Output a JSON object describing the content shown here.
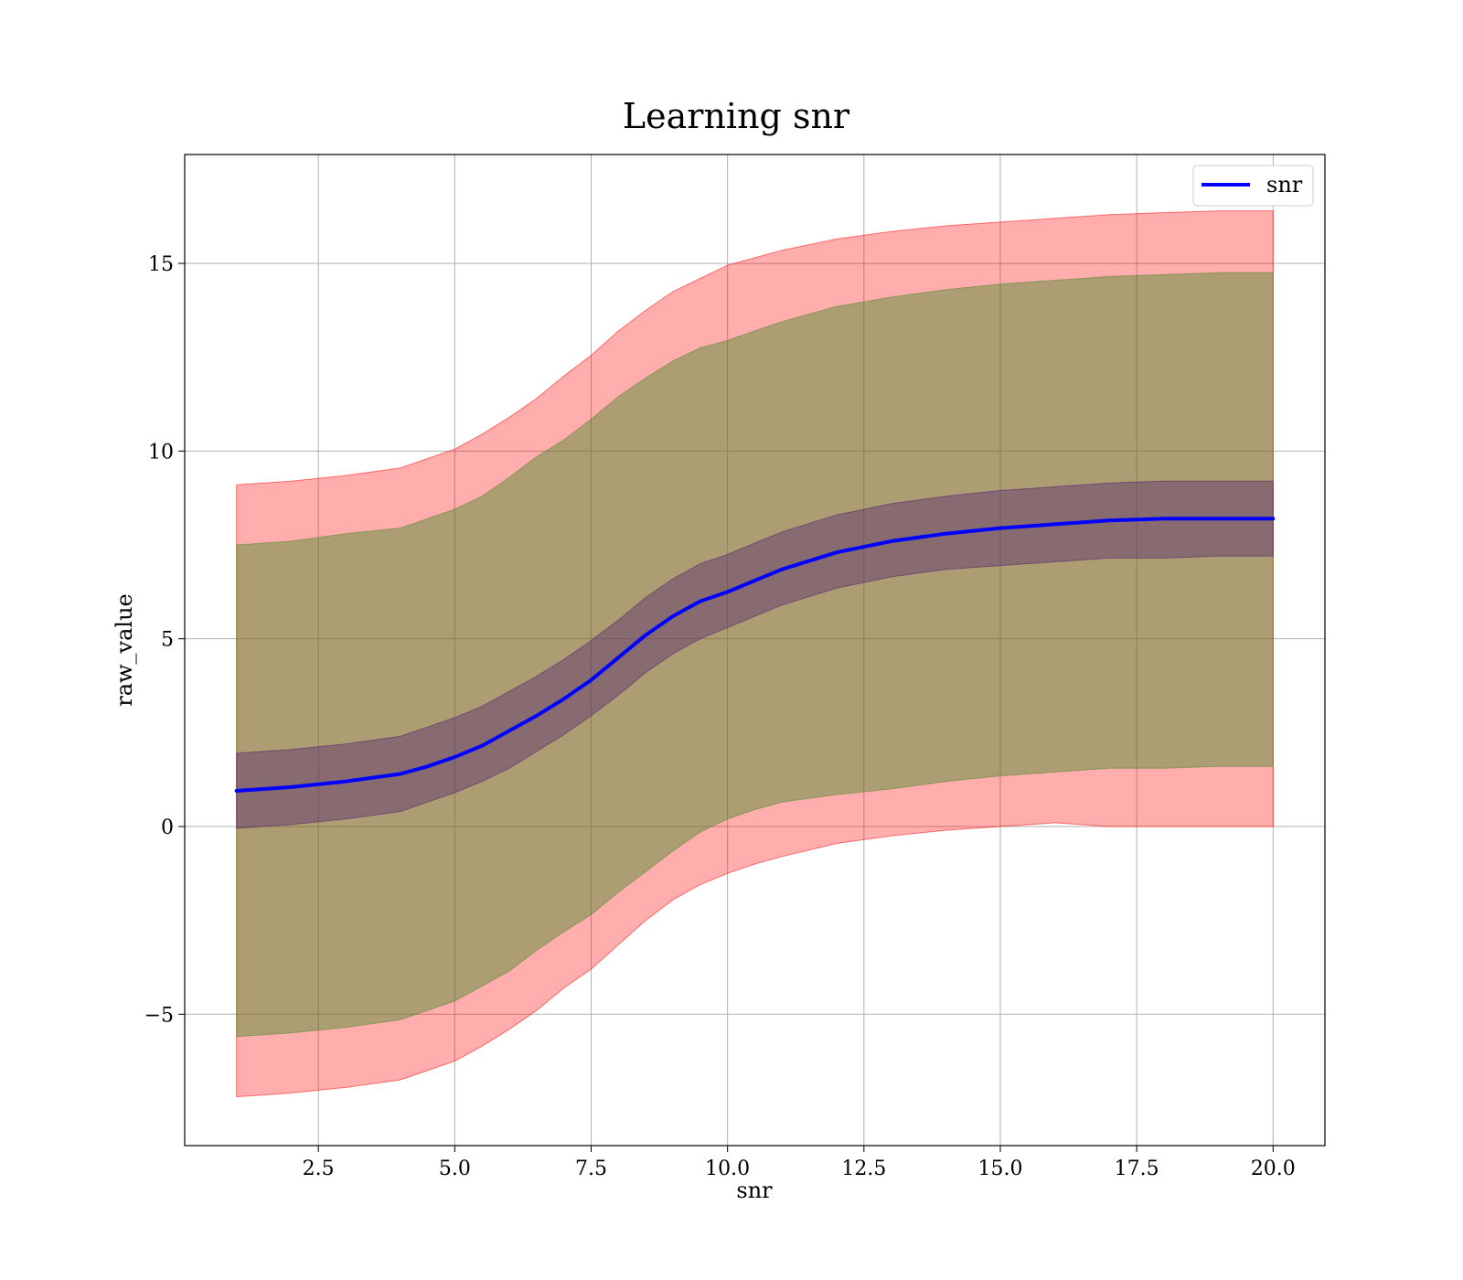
{
  "chart_data": {
    "type": "area",
    "title": "Learning snr",
    "xlabel": "snr",
    "ylabel": "raw_value",
    "xlim": [
      0.05,
      20.95
    ],
    "ylim": [
      -8.5,
      17.9
    ],
    "grid": true,
    "legend_position": "top-right",
    "x_ticks": [
      2.5,
      5.0,
      7.5,
      10.0,
      12.5,
      15.0,
      17.5,
      20.0
    ],
    "x_tick_labels": [
      "2.5",
      "5.0",
      "7.5",
      "10.0",
      "12.5",
      "15.0",
      "17.5",
      "20.0"
    ],
    "y_ticks": [
      -5,
      0,
      5,
      10,
      15
    ],
    "y_tick_labels": [
      "−5",
      "0",
      "5",
      "10",
      "15"
    ],
    "x": [
      1.0,
      2.0,
      3.0,
      4.0,
      4.5,
      5.0,
      5.5,
      6.0,
      6.5,
      7.0,
      7.5,
      8.0,
      8.5,
      9.0,
      9.5,
      10.0,
      10.5,
      11.0,
      12.0,
      13.0,
      14.0,
      15.0,
      16.0,
      17.0,
      18.0,
      19.0,
      20.0
    ],
    "series": [
      {
        "name": "snr",
        "color": "#0000ff",
        "values": [
          0.95,
          1.05,
          1.2,
          1.4,
          1.6,
          1.85,
          2.15,
          2.55,
          2.95,
          3.4,
          3.9,
          4.5,
          5.1,
          5.6,
          6.0,
          6.25,
          6.55,
          6.85,
          7.3,
          7.6,
          7.8,
          7.95,
          8.05,
          8.15,
          8.2,
          8.2,
          8.2
        ]
      }
    ],
    "bands": [
      {
        "color": "#ff0000",
        "opacity": 0.32,
        "lower": [
          -7.2,
          -7.1,
          -6.95,
          -6.75,
          -6.5,
          -6.25,
          -5.85,
          -5.4,
          -4.9,
          -4.3,
          -3.8,
          -3.15,
          -2.5,
          -1.95,
          -1.55,
          -1.25,
          -1.0,
          -0.8,
          -0.45,
          -0.25,
          -0.1,
          0.0,
          0.1,
          0.0,
          0.0,
          0.0,
          0.0
        ],
        "upper": [
          9.1,
          9.2,
          9.35,
          9.55,
          9.8,
          10.05,
          10.45,
          10.9,
          11.4,
          12.0,
          12.55,
          13.2,
          13.75,
          14.25,
          14.6,
          14.95,
          15.15,
          15.35,
          15.65,
          15.85,
          16.0,
          16.1,
          16.2,
          16.3,
          16.35,
          16.4,
          16.4
        ]
      },
      {
        "color": "#4a8a2a",
        "opacity": 0.45,
        "lower": [
          -5.6,
          -5.5,
          -5.35,
          -5.15,
          -4.9,
          -4.65,
          -4.25,
          -3.85,
          -3.3,
          -2.8,
          -2.35,
          -1.75,
          -1.2,
          -0.65,
          -0.15,
          0.2,
          0.45,
          0.65,
          0.85,
          1.0,
          1.2,
          1.35,
          1.45,
          1.55,
          1.55,
          1.6,
          1.6
        ],
        "upper": [
          7.5,
          7.6,
          7.8,
          7.95,
          8.2,
          8.45,
          8.8,
          9.3,
          9.85,
          10.3,
          10.85,
          11.45,
          11.95,
          12.4,
          12.75,
          12.95,
          13.2,
          13.45,
          13.85,
          14.1,
          14.3,
          14.45,
          14.55,
          14.65,
          14.7,
          14.75,
          14.75
        ]
      },
      {
        "color": "#4b1a6e",
        "opacity": 0.38,
        "lower": [
          -0.05,
          0.05,
          0.2,
          0.4,
          0.65,
          0.9,
          1.2,
          1.55,
          2.0,
          2.45,
          2.95,
          3.5,
          4.1,
          4.6,
          5.0,
          5.3,
          5.6,
          5.9,
          6.35,
          6.65,
          6.85,
          6.95,
          7.05,
          7.15,
          7.15,
          7.2,
          7.2
        ],
        "upper": [
          1.95,
          2.05,
          2.2,
          2.4,
          2.65,
          2.9,
          3.2,
          3.6,
          4.0,
          4.45,
          4.95,
          5.5,
          6.1,
          6.6,
          7.0,
          7.25,
          7.55,
          7.85,
          8.3,
          8.6,
          8.8,
          8.95,
          9.05,
          9.15,
          9.2,
          9.2,
          9.2
        ]
      }
    ]
  }
}
